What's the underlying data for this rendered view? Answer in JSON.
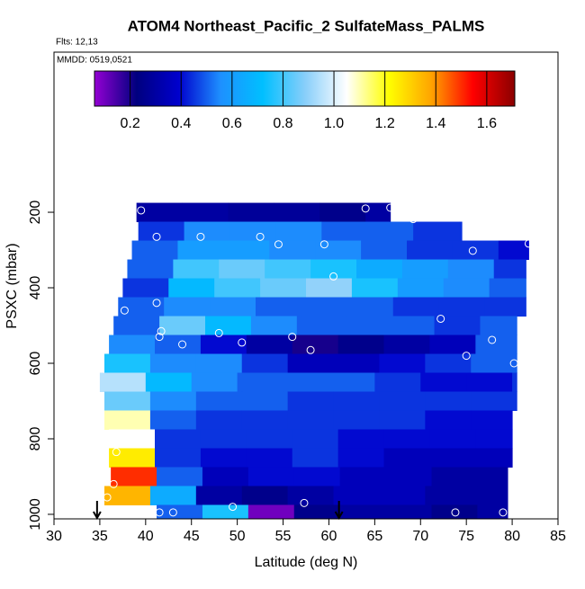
{
  "chart_data": {
    "type": "heatmap",
    "title": "ATOM4 Northeast_Pacific_2 SulfateMass_PALMS",
    "subtitle": "Flts: 12,13",
    "annotation": "MMDD: 0519,0521",
    "x_label": "Latitude (deg N)",
    "y_label": "PSXC (mbar)",
    "xlim": [
      30,
      85
    ],
    "xticks": [
      30,
      35,
      40,
      45,
      50,
      55,
      60,
      65,
      70,
      75,
      80,
      85
    ],
    "ylim": [
      1012,
      -224
    ],
    "yticks": [
      200,
      400,
      600,
      800,
      1000
    ],
    "zlim": [
      0.06,
      1.71
    ],
    "zticks": [
      0.2,
      0.4,
      0.6,
      0.8,
      {
        "value": 1,
        "label": "1.0"
      },
      1.2,
      1.4,
      1.6
    ],
    "colors": [
      "#9400d3",
      "#00007f",
      "#0000cd",
      "#1e90ff",
      "#00bfff",
      "#87cefa",
      "#ffffff",
      "#ffff00",
      "#ffa500",
      "#ff0000",
      "#8b0000"
    ],
    "row_height": 50,
    "cell_width": 5,
    "rows": [
      {
        "p": 200,
        "lat_start": 39,
        "lat_end": 66.7,
        "values": [
          0.3,
          0.3,
          0.28,
          0.28,
          0.25,
          0.3
        ]
      },
      {
        "p": 250,
        "lat_start": 39.2,
        "lat_end": 74.5,
        "values": [
          0.45,
          0.55,
          0.55,
          0.55,
          0.5,
          0.5,
          0.45,
          0.45
        ]
      },
      {
        "p": 300,
        "lat_start": 38.5,
        "lat_end": 81.8,
        "values": [
          0.5,
          0.6,
          0.6,
          0.55,
          0.55,
          0.5,
          0.45,
          0.45,
          0.4
        ]
      },
      {
        "p": 350,
        "lat_start": 38,
        "lat_end": 81.5,
        "values": [
          0.5,
          0.8,
          0.85,
          0.8,
          0.75,
          0.65,
          0.6,
          0.55,
          0.45
        ]
      },
      {
        "p": 400,
        "lat_start": 37.5,
        "lat_end": 81.5,
        "values": [
          0.45,
          0.7,
          0.8,
          0.85,
          0.9,
          0.75,
          0.6,
          0.55,
          0.5
        ]
      },
      {
        "p": 450,
        "lat_start": 37,
        "lat_end": 81.5,
        "values": [
          0.5,
          0.55,
          0.55,
          0.5,
          0.5,
          0.5,
          0.45,
          0.45,
          0.45
        ]
      },
      {
        "p": 500,
        "lat_start": 36.5,
        "lat_end": 80.5,
        "values": [
          0.5,
          0.85,
          0.7,
          0.55,
          0.5,
          0.5,
          0.5,
          0.45,
          0.5
        ]
      },
      {
        "p": 550,
        "lat_start": 36,
        "lat_end": 80.5,
        "values": [
          0.55,
          0.5,
          0.4,
          0.3,
          0.2,
          0.25,
          0.3,
          0.35,
          0.5
        ]
      },
      {
        "p": 600,
        "lat_start": 35.5,
        "lat_end": 80.5,
        "values": [
          0.75,
          0.55,
          0.55,
          0.45,
          0.35,
          0.35,
          0.4,
          0.45,
          0.5
        ]
      },
      {
        "p": 650,
        "lat_start": 35,
        "lat_end": 80.5,
        "values": [
          0.95,
          0.7,
          0.55,
          0.5,
          0.5,
          0.5,
          0.45,
          0.4,
          0.4,
          0.45
        ]
      },
      {
        "p": 700,
        "lat_start": 35.5,
        "lat_end": 80.5,
        "values": [
          0.85,
          0.55,
          0.5,
          0.5,
          0.45,
          0.45,
          0.45,
          0.45,
          0.45
        ]
      },
      {
        "p": 750,
        "lat_start": 35.5,
        "lat_end": 80,
        "values": [
          1.1,
          0.5,
          0.45,
          0.45,
          0.45,
          0.45,
          0.45,
          0.4,
          0.4
        ]
      },
      {
        "p": 800,
        "lat_start": 36,
        "lat_end": 80,
        "values": [
          1.05,
          0.45,
          0.45,
          0.45,
          0.45,
          0.4,
          0.4,
          0.4,
          0.4
        ]
      },
      {
        "p": 850,
        "lat_start": 36,
        "lat_end": 80,
        "values": [
          1.25,
          0.45,
          0.4,
          0.4,
          0.45,
          0.4,
          0.35,
          0.35,
          0.35
        ]
      },
      {
        "p": 900,
        "lat_start": 36.2,
        "lat_end": 79.5,
        "values": [
          1.5,
          0.5,
          0.35,
          0.4,
          0.4,
          0.35,
          0.35,
          0.3,
          0.3
        ]
      },
      {
        "p": 950,
        "lat_start": 35.5,
        "lat_end": 79.5,
        "values": [
          1.35,
          0.65,
          0.3,
          0.25,
          0.3,
          0.35,
          0.35,
          0.3,
          0.3
        ]
      },
      {
        "p": 1000,
        "lat_start": 41.2,
        "lat_end": 79.5,
        "values": [
          0.5,
          0.75,
          0.1,
          0.25,
          0.3,
          0.3,
          0.25,
          0.3
        ]
      }
    ],
    "points": {
      "x": [
        39.5,
        64,
        66.7,
        69.2,
        41.2,
        46,
        52.5,
        54.5,
        59.5,
        75.7,
        81.8,
        60.5,
        37.7,
        41.2,
        41.5,
        41.7,
        44,
        48,
        50.5,
        56,
        58,
        72.2,
        77.8,
        75,
        80.2,
        36.8,
        36.5,
        35.8,
        41.5,
        43,
        49.5,
        57.3,
        73.8,
        79
      ],
      "y": [
        195,
        190,
        188,
        218,
        265,
        265,
        265,
        285,
        285,
        302,
        283,
        370,
        460,
        440,
        530,
        515,
        550,
        520,
        545,
        530,
        565,
        482,
        538,
        580,
        600,
        835,
        920,
        955,
        995,
        995,
        980,
        970,
        995,
        995
      ]
    },
    "arrows": [
      34.7,
      61.1
    ]
  }
}
